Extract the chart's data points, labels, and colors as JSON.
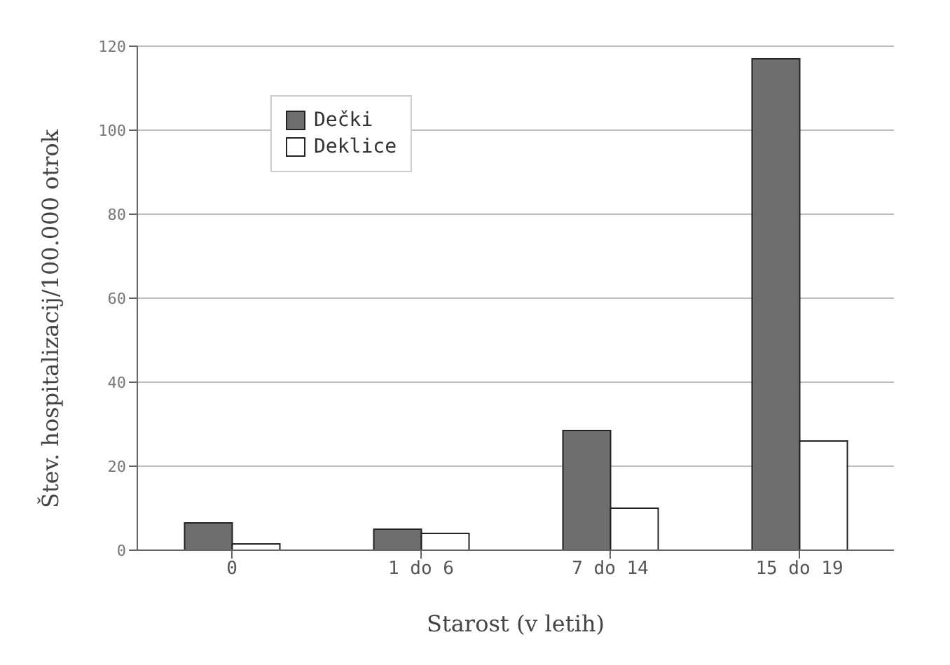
{
  "chart_data": {
    "type": "bar",
    "xlabel": "Starost (v letih)",
    "ylabel": "Štev. hospitalizacij/100.000 otrok",
    "categories": [
      "0",
      "1 do 6",
      "7 do 14",
      "15 do 19"
    ],
    "series": [
      {
        "name": "Dečki",
        "color": "#6e6e6e",
        "values": [
          6.5,
          5,
          28.5,
          117
        ]
      },
      {
        "name": "Deklice",
        "color": "#ffffff",
        "values": [
          1.5,
          4,
          10,
          26
        ]
      }
    ],
    "ylim": [
      0,
      120
    ],
    "yticks": [
      0,
      20,
      40,
      60,
      80,
      100,
      120
    ],
    "grid": "y",
    "legend": "top left"
  }
}
